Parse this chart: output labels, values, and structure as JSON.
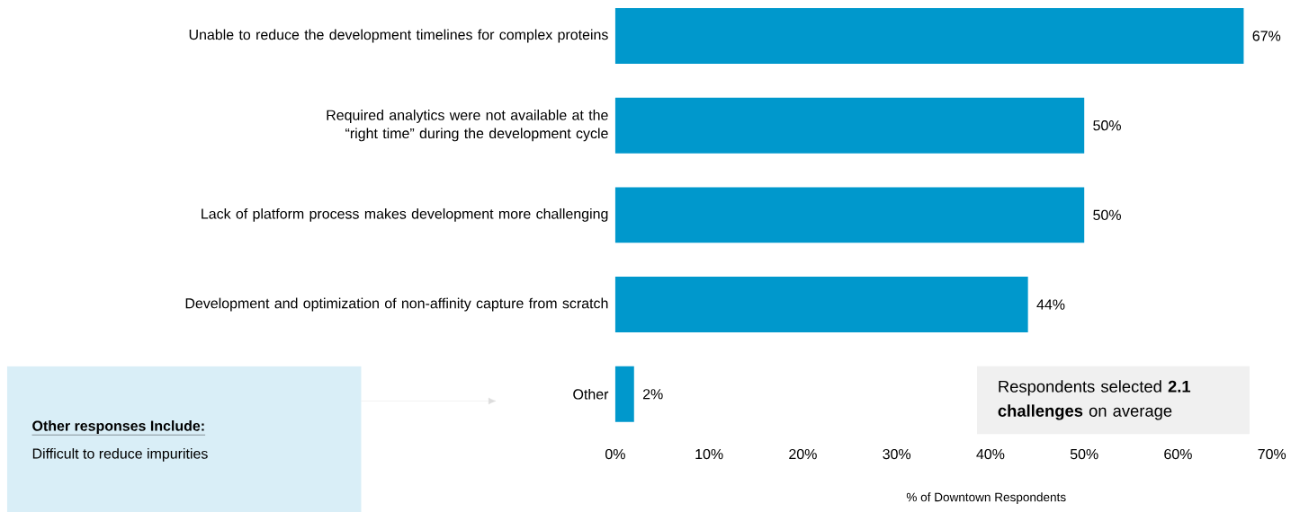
{
  "chart_data": {
    "type": "bar",
    "orientation": "horizontal",
    "xlabel": "% of Downtown Respondents",
    "categories": [
      "Unable to reduce the development timelines for complex proteins",
      "Required analytics were not available at the “right time” during the development cycle",
      "Lack of platform process makes development more challenging",
      "Development and optimization of non-affinity capture from scratch",
      "Other"
    ],
    "values": [
      67,
      50,
      50,
      44,
      2
    ],
    "value_labels": [
      "67%",
      "50%",
      "50%",
      "44%",
      "2%"
    ],
    "color": "#0098cc",
    "xlim": [
      0,
      70
    ],
    "xticks": [
      {
        "value": 0,
        "label": "0%"
      },
      {
        "value": 10,
        "label": "10%"
      },
      {
        "value": 20,
        "label": "20%"
      },
      {
        "value": 30,
        "label": "30%"
      },
      {
        "value": 40,
        "label": "40%"
      },
      {
        "value": 50,
        "label": "50%"
      },
      {
        "value": 60,
        "label": "60%"
      },
      {
        "value": 70,
        "label": "70%"
      }
    ],
    "annotations": [
      "Other responses Include:",
      "Difficult to reduce impurities",
      "Respondents selected **2.1 challenges** on average"
    ]
  }
}
